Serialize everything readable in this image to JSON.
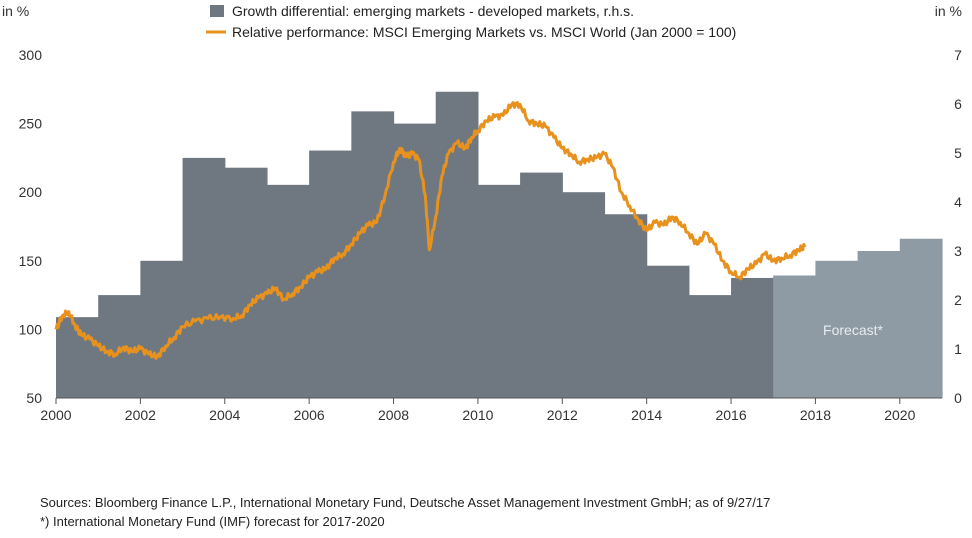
{
  "chart_data": {
    "type": "bar+line",
    "left_axis_unit": "in %",
    "right_axis_unit": "in %",
    "left_ylim": [
      50,
      300
    ],
    "left_ticks": [
      "300",
      "250",
      "200",
      "150",
      "100",
      "50"
    ],
    "right_ylim": [
      0,
      7
    ],
    "right_ticks": [
      "7",
      "6",
      "5",
      "4",
      "3",
      "2",
      "1",
      "0"
    ],
    "xlim": [
      2000,
      2021
    ],
    "x_ticks": [
      "2000",
      "2002",
      "2004",
      "2006",
      "2008",
      "2010",
      "2012",
      "2014",
      "2016",
      "2018",
      "2020"
    ],
    "legend": {
      "bars_label": "Growth differential: emerging markets - developed markets, r.h.s.",
      "line_label": "Relative performance: MSCI Emerging Markets vs. MSCI World (Jan 2000 = 100)"
    },
    "colors": {
      "bar": "#6f7880",
      "forecast_bar": "#8e9ba4",
      "line": "#e8921d"
    },
    "forecast_start": 2017,
    "forecast_label": "Forecast*",
    "bars": [
      {
        "year": 2000,
        "value": 1.65
      },
      {
        "year": 2001,
        "value": 2.1
      },
      {
        "year": 2002,
        "value": 2.8
      },
      {
        "year": 2003,
        "value": 4.9
      },
      {
        "year": 2004,
        "value": 4.7
      },
      {
        "year": 2005,
        "value": 4.35
      },
      {
        "year": 2006,
        "value": 5.05
      },
      {
        "year": 2007,
        "value": 5.85
      },
      {
        "year": 2008,
        "value": 5.6
      },
      {
        "year": 2009,
        "value": 6.25
      },
      {
        "year": 2010,
        "value": 4.35
      },
      {
        "year": 2011,
        "value": 4.6
      },
      {
        "year": 2012,
        "value": 4.2
      },
      {
        "year": 2013,
        "value": 3.75
      },
      {
        "year": 2014,
        "value": 2.7
      },
      {
        "year": 2015,
        "value": 2.1
      },
      {
        "year": 2016,
        "value": 2.45
      },
      {
        "year": 2017,
        "value": 2.5,
        "forecast": true
      },
      {
        "year": 2018,
        "value": 2.8,
        "forecast": true
      },
      {
        "year": 2019,
        "value": 3.0,
        "forecast": true
      },
      {
        "year": 2020,
        "value": 3.25,
        "forecast": true
      }
    ],
    "line": [
      [
        2000.0,
        100
      ],
      [
        2000.15,
        110
      ],
      [
        2000.3,
        113
      ],
      [
        2000.45,
        103
      ],
      [
        2000.6,
        96
      ],
      [
        2000.8,
        93
      ],
      [
        2001.0,
        88
      ],
      [
        2001.2,
        84
      ],
      [
        2001.4,
        82
      ],
      [
        2001.6,
        87
      ],
      [
        2001.8,
        84
      ],
      [
        2002.0,
        86
      ],
      [
        2002.2,
        82
      ],
      [
        2002.4,
        80
      ],
      [
        2002.6,
        88
      ],
      [
        2002.8,
        94
      ],
      [
        2003.0,
        102
      ],
      [
        2003.3,
        106
      ],
      [
        2003.6,
        108
      ],
      [
        2003.9,
        109
      ],
      [
        2004.2,
        108
      ],
      [
        2004.4,
        110
      ],
      [
        2004.6,
        118
      ],
      [
        2004.8,
        123
      ],
      [
        2005.0,
        126
      ],
      [
        2005.2,
        130
      ],
      [
        2005.4,
        122
      ],
      [
        2005.6,
        126
      ],
      [
        2005.8,
        131
      ],
      [
        2006.0,
        138
      ],
      [
        2006.2,
        142
      ],
      [
        2006.4,
        144
      ],
      [
        2006.6,
        152
      ],
      [
        2006.8,
        155
      ],
      [
        2007.0,
        162
      ],
      [
        2007.2,
        170
      ],
      [
        2007.4,
        176
      ],
      [
        2007.6,
        178
      ],
      [
        2007.8,
        198
      ],
      [
        2008.0,
        222
      ],
      [
        2008.15,
        232
      ],
      [
        2008.3,
        226
      ],
      [
        2008.45,
        228
      ],
      [
        2008.6,
        224
      ],
      [
        2008.75,
        198
      ],
      [
        2008.85,
        158
      ],
      [
        2009.0,
        182
      ],
      [
        2009.15,
        212
      ],
      [
        2009.3,
        228
      ],
      [
        2009.5,
        236
      ],
      [
        2009.7,
        232
      ],
      [
        2009.85,
        240
      ],
      [
        2010.0,
        245
      ],
      [
        2010.2,
        252
      ],
      [
        2010.4,
        255
      ],
      [
        2010.6,
        256
      ],
      [
        2010.8,
        264
      ],
      [
        2011.0,
        264
      ],
      [
        2011.2,
        252
      ],
      [
        2011.4,
        250
      ],
      [
        2011.6,
        248
      ],
      [
        2011.8,
        240
      ],
      [
        2012.0,
        232
      ],
      [
        2012.2,
        228
      ],
      [
        2012.4,
        222
      ],
      [
        2012.6,
        224
      ],
      [
        2012.8,
        225
      ],
      [
        2013.0,
        228
      ],
      [
        2013.2,
        218
      ],
      [
        2013.4,
        200
      ],
      [
        2013.6,
        190
      ],
      [
        2013.8,
        180
      ],
      [
        2014.0,
        172
      ],
      [
        2014.2,
        178
      ],
      [
        2014.4,
        176
      ],
      [
        2014.6,
        182
      ],
      [
        2014.8,
        178
      ],
      [
        2015.0,
        170
      ],
      [
        2015.2,
        162
      ],
      [
        2015.4,
        170
      ],
      [
        2015.6,
        162
      ],
      [
        2015.8,
        150
      ],
      [
        2016.0,
        142
      ],
      [
        2016.2,
        138
      ],
      [
        2016.4,
        144
      ],
      [
        2016.6,
        148
      ],
      [
        2016.8,
        155
      ],
      [
        2017.0,
        150
      ],
      [
        2017.2,
        152
      ],
      [
        2017.4,
        154
      ],
      [
        2017.6,
        158
      ],
      [
        2017.75,
        160
      ]
    ]
  },
  "footer": {
    "sources": "Sources: Bloomberg Finance L.P., International Monetary Fund, Deutsche Asset Management Investment GmbH; as of 9/27/17",
    "footnote": "*) International Monetary Fund (IMF) forecast for 2017-2020"
  }
}
